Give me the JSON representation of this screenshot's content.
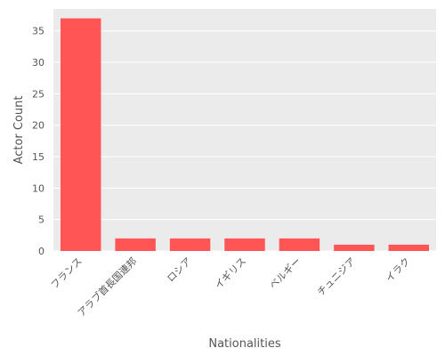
{
  "chart_data": {
    "type": "bar",
    "title": "",
    "xlabel": "Nationalities",
    "ylabel": "Actor Count",
    "categories": [
      "フランス",
      "アラブ首長国連邦",
      "ロシア",
      "イギリス",
      "ベルギー",
      "チュニジア",
      "イラク"
    ],
    "values": [
      37,
      2,
      2,
      2,
      2,
      1,
      1
    ],
    "ylim": [
      0,
      38.5
    ],
    "yticks": [
      0,
      5,
      10,
      15,
      20,
      25,
      30,
      35
    ],
    "grid": true,
    "legend": "none",
    "colors": {
      "bar": "#ff5555",
      "background": "#ebebeb",
      "grid": "#ffffff",
      "text": "#555555"
    }
  }
}
